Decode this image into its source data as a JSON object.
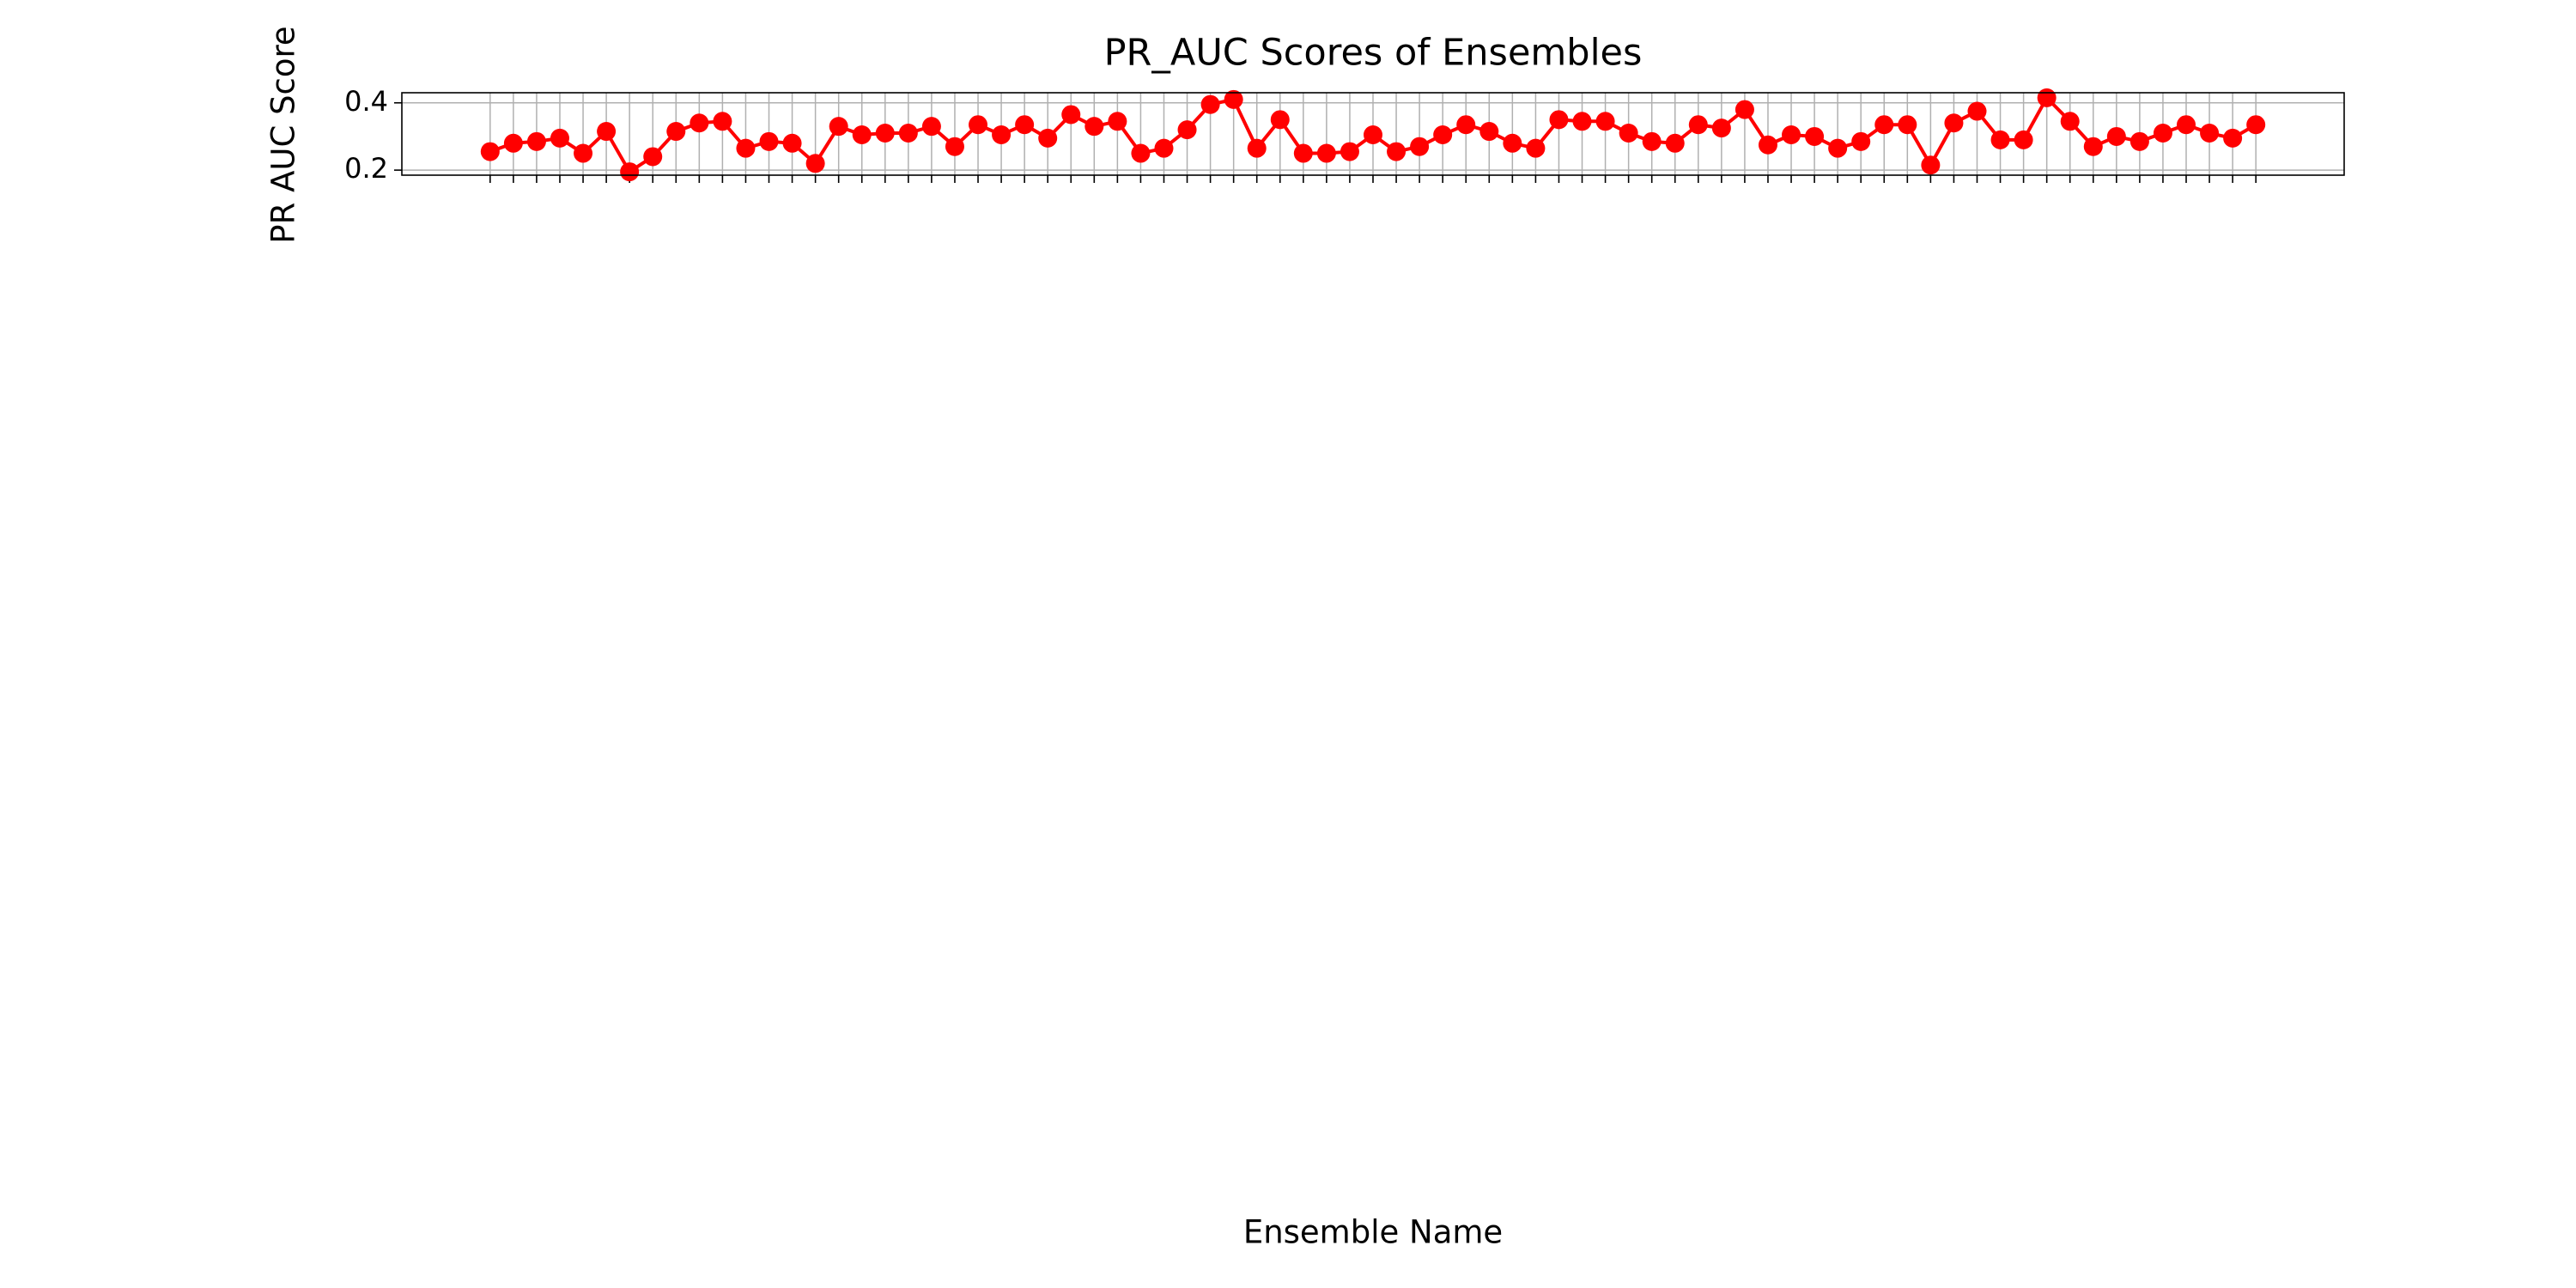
{
  "chart_data": {
    "type": "line",
    "title": "PR_AUC Scores of Ensembles",
    "xlabel": "Ensemble Name",
    "ylabel": "PR AUC Score",
    "categories": [
      null,
      null,
      null,
      null,
      null,
      null,
      null,
      null,
      null,
      null,
      null,
      null,
      null,
      null,
      null,
      null,
      null,
      null,
      null,
      null,
      null,
      null,
      null,
      null,
      null,
      null,
      null,
      null,
      null,
      null,
      null,
      null,
      null,
      null,
      null,
      null,
      null,
      null,
      null,
      null,
      null,
      null,
      null,
      null,
      null,
      null,
      null,
      null,
      null,
      null,
      null,
      null,
      null,
      null,
      null,
      null,
      null,
      null,
      null,
      null,
      null,
      null,
      null,
      null,
      null,
      null,
      null,
      null,
      null,
      null,
      null,
      null,
      null,
      null,
      null,
      null,
      null
    ],
    "series": [
      {
        "name": "PR_AUC",
        "color": "#ff0000",
        "values": [
          0.255,
          0.28,
          0.285,
          0.295,
          0.25,
          0.315,
          0.195,
          0.24,
          0.315,
          0.34,
          0.345,
          0.265,
          0.285,
          0.28,
          0.22,
          0.33,
          0.305,
          0.31,
          0.31,
          0.33,
          0.27,
          0.335,
          0.305,
          0.335,
          0.295,
          0.365,
          0.33,
          0.345,
          0.25,
          0.265,
          0.32,
          0.395,
          0.41,
          0.265,
          0.35,
          0.25,
          0.25,
          0.255,
          0.305,
          0.255,
          0.27,
          0.305,
          0.335,
          0.315,
          0.28,
          0.265,
          0.35,
          0.345,
          0.345,
          0.31,
          0.285,
          0.28,
          0.335,
          0.325,
          0.38,
          0.275,
          0.305,
          0.3,
          0.265,
          0.285,
          0.335,
          0.335,
          0.215,
          0.34,
          0.375,
          0.29,
          0.29,
          0.415,
          0.345,
          0.27,
          0.3,
          0.285,
          0.31,
          0.335,
          0.31,
          0.295,
          0.335
        ]
      }
    ],
    "ylim": [
      0.185,
      0.43
    ],
    "yticks": [
      0.2,
      0.4
    ],
    "grid": true
  }
}
